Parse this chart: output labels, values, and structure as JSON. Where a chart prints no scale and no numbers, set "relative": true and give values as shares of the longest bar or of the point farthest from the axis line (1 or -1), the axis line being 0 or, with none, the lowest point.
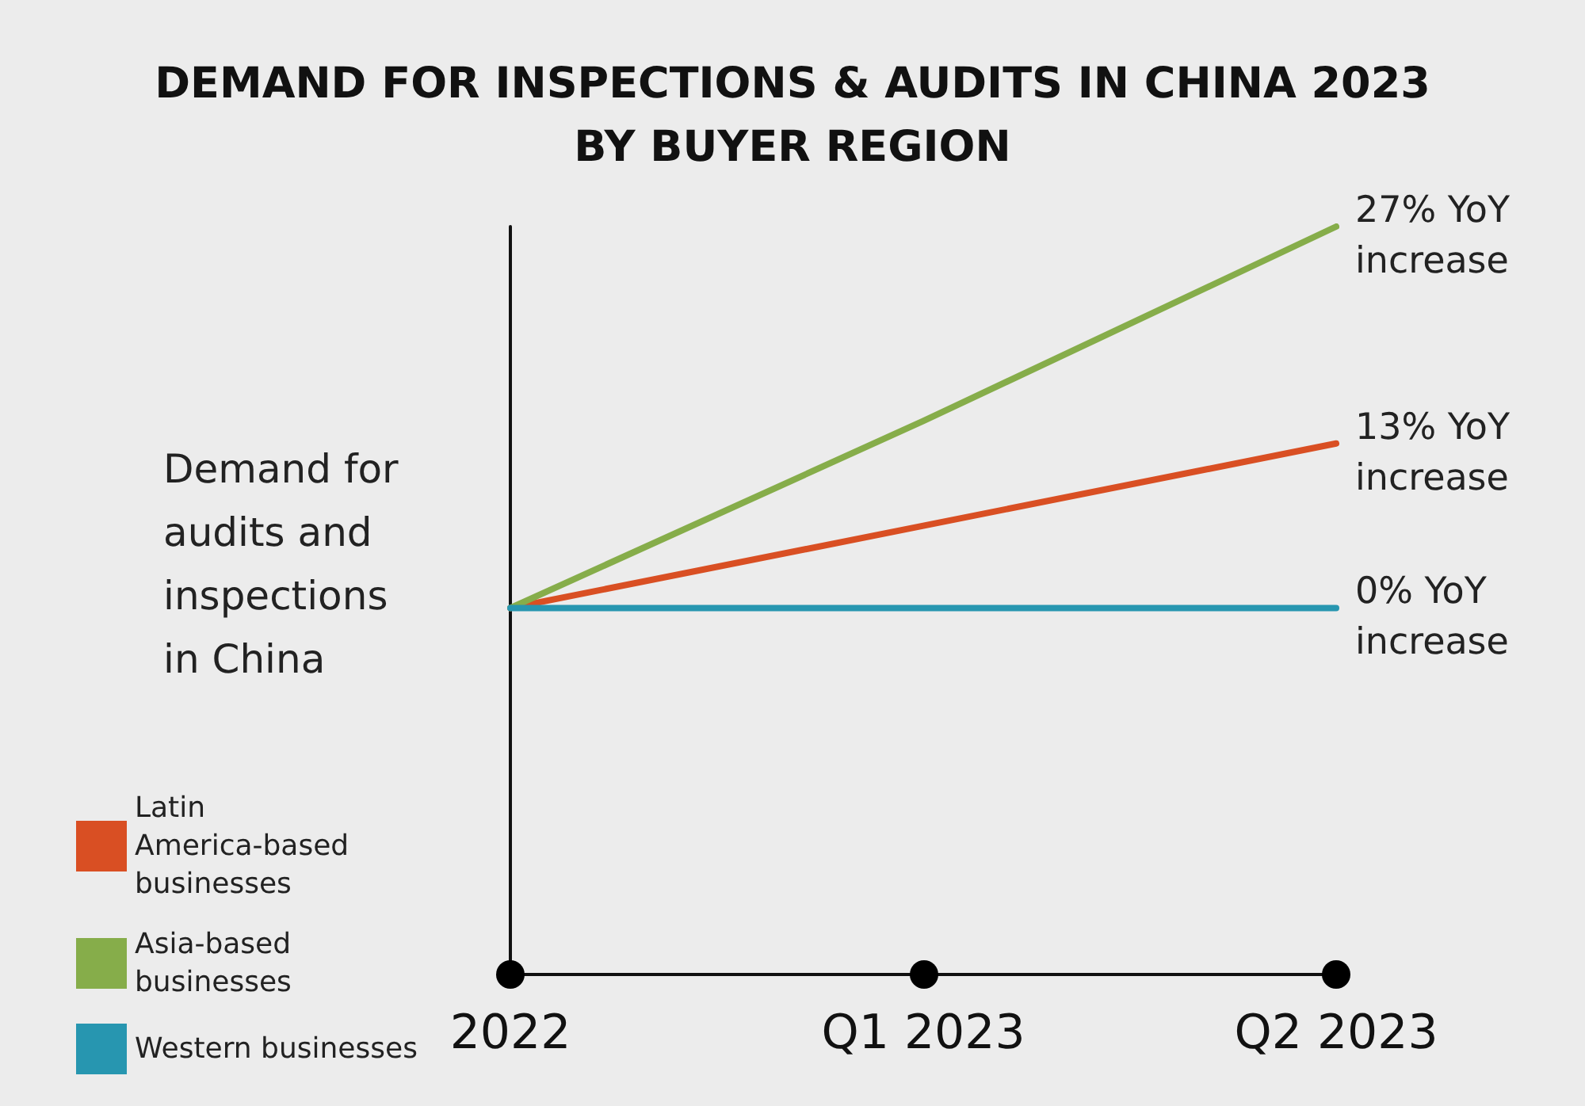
{
  "chart_data": {
    "type": "line",
    "title": "DEMAND FOR INSPECTIONS & AUDITS IN CHINA 2023\nBY BUYER REGION",
    "ylabel": "Demand for\naudits and\ninspections\nin China",
    "categories": [
      "2022",
      "Q1 2023",
      "Q2 2023"
    ],
    "relative": true,
    "series": [
      {
        "name": "Latin America-based businesses",
        "color": "#d94f23",
        "values": [
          0.49,
          0.6,
          0.71
        ]
      },
      {
        "name": "Asia-based businesses",
        "color": "#86ad4a",
        "values": [
          0.49,
          0.74,
          1
        ]
      },
      {
        "name": "Western businesses",
        "color": "#2796b0",
        "values": [
          0.49,
          0.49,
          0.49
        ]
      }
    ],
    "annotations": [
      {
        "text": "27% YoY\nincrease",
        "x": "Q2 2023",
        "y": 1
      },
      {
        "text": "13% YoY\nincrease",
        "x": "Q2 2023",
        "y": 0.71
      },
      {
        "text": "0% YoY\nincrease",
        "x": "Q2 2023",
        "y": 0.49
      }
    ],
    "legend": "bottom left",
    "grid": false,
    "marker": "none",
    "line_style": "solid"
  }
}
